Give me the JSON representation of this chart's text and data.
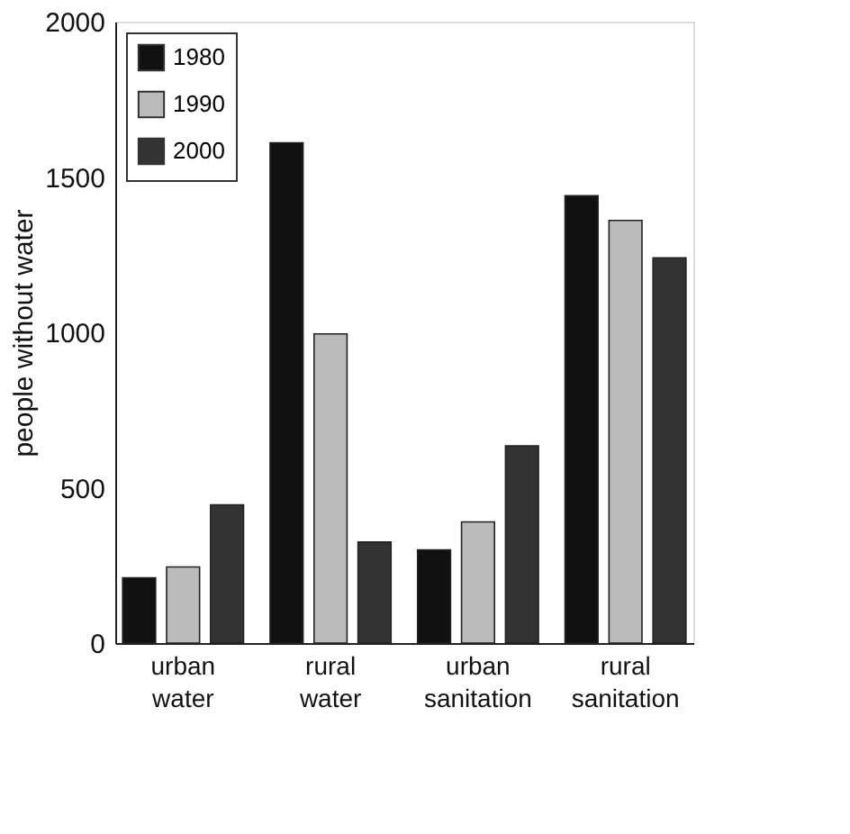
{
  "chart_data": {
    "type": "bar",
    "ylabel": "people without water",
    "categories": [
      "urban water",
      "rural water",
      "urban sanitation",
      "rural sanitation"
    ],
    "series": [
      {
        "name": "1980",
        "color": "#111111",
        "values": [
          210,
          1610,
          300,
          1440
        ]
      },
      {
        "name": "1990",
        "color": "#bbbbbb",
        "values": [
          245,
          995,
          390,
          1360
        ]
      },
      {
        "name": "2000",
        "color": "#333333",
        "values": [
          445,
          325,
          635,
          1240
        ]
      }
    ],
    "ylim": [
      0,
      2000
    ],
    "yticks": [
      0,
      500,
      1000,
      1500,
      2000
    ],
    "grid": false,
    "legend": "top left"
  }
}
